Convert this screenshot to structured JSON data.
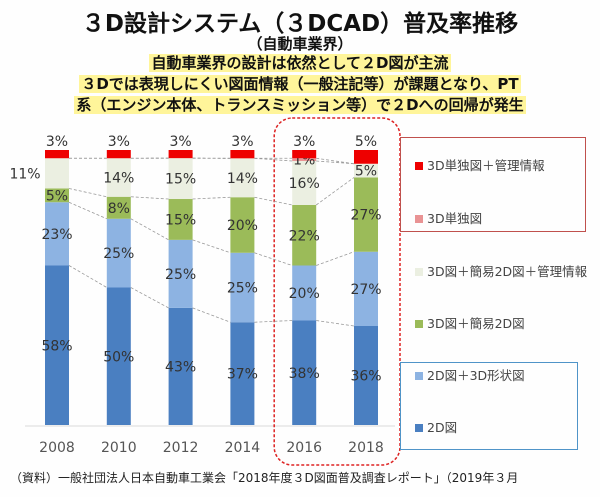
{
  "header": {
    "title": "３D設計システム（３DCAD）普及率推移",
    "subtitle": "（自動車業界）",
    "lines": [
      "自動車業界の設計は依然として２D図が主流",
      "３Dでは表現しにくい図面情報（一般注記等）が課題となり、PT",
      "系（エンジン本体、トランスミッション等）で２Dへの回帰が発生"
    ]
  },
  "chart_data": {
    "type": "bar",
    "stacked": true,
    "categories": [
      "2008",
      "2010",
      "2012",
      "2014",
      "2016",
      "2018"
    ],
    "series": [
      {
        "name": "2D図",
        "color": "#4a7fc1",
        "values": [
          58,
          50,
          43,
          37,
          38,
          36
        ]
      },
      {
        "name": "2D図＋3D形状図",
        "color": "#8db3e2",
        "values": [
          23,
          25,
          25,
          25,
          20,
          27
        ]
      },
      {
        "name": "3D図＋簡易2D図",
        "color": "#9bbb59",
        "values": [
          5,
          8,
          15,
          20,
          22,
          27
        ]
      },
      {
        "name": "3D図＋簡易2D図＋管理情報",
        "color": "#ebefe1",
        "values": [
          11,
          14,
          15,
          14,
          16,
          5
        ]
      },
      {
        "name": "3D単独図",
        "color": "#e99394",
        "values": [
          0,
          0,
          0,
          0,
          1,
          0
        ]
      },
      {
        "name": "3D単独図＋管理情報",
        "color": "#ee0000",
        "values": [
          3,
          3,
          3,
          3,
          3,
          5
        ]
      }
    ],
    "highlight_categories": [
      "2016",
      "2018"
    ],
    "ylim": [
      0,
      100
    ],
    "grid": false,
    "legend": "right"
  },
  "legend": {
    "items": [
      "3D単独図＋管理情報",
      "3D単独図",
      "3D図＋簡易2D図＋管理情報",
      "3D図＋簡易2D図",
      "2D図＋3D形状図",
      "2D図"
    ]
  },
  "footer": {
    "source": "（資料）一般社団法人日本自動車工業会「2018年度３D図面普及調査レポート」（2019年３月"
  }
}
